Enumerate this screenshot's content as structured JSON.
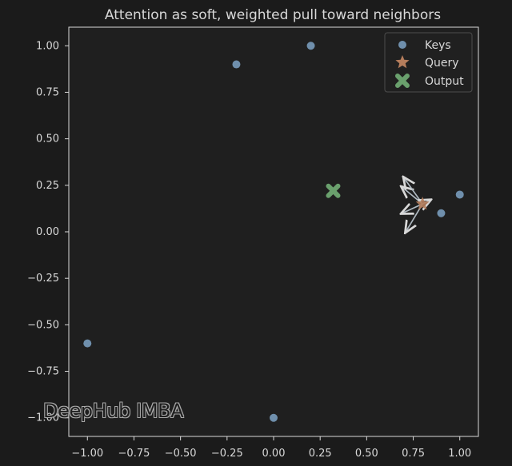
{
  "watermark": "DeepHub IMBA",
  "chart_data": {
    "type": "scatter",
    "title": "Attention as soft, weighted pull toward neighbors",
    "xlabel": "",
    "ylabel": "",
    "xlim": [
      -1.1,
      1.1
    ],
    "ylim": [
      -1.1,
      1.1
    ],
    "xticks": [
      -1.0,
      -0.75,
      -0.5,
      -0.25,
      0.0,
      0.25,
      0.5,
      0.75,
      1.0
    ],
    "xtick_labels": [
      "−1.00",
      "−0.75",
      "−0.50",
      "−0.25",
      "0.00",
      "0.25",
      "0.50",
      "0.75",
      "1.00"
    ],
    "yticks": [
      1.0,
      0.75,
      0.5,
      0.25,
      0.0,
      -0.25,
      -0.5,
      -0.75,
      -1.0
    ],
    "ytick_labels": [
      "1.00",
      "0.75",
      "0.50",
      "0.25",
      "0.00",
      "−0.25",
      "−0.50",
      "−0.75",
      "−1.00"
    ],
    "grid": false,
    "legend_location": "top-right",
    "series": [
      {
        "name": "Keys",
        "marker": "circle",
        "color": "#6f8fac",
        "points": [
          {
            "x": 0.2,
            "y": 1.0
          },
          {
            "x": -0.2,
            "y": 0.9
          },
          {
            "x": 1.0,
            "y": 0.2
          },
          {
            "x": 0.9,
            "y": 0.1
          },
          {
            "x": -1.0,
            "y": -0.6
          },
          {
            "x": 0.0,
            "y": -1.0
          }
        ]
      },
      {
        "name": "Query",
        "marker": "star",
        "color": "#b57d5c",
        "points": [
          {
            "x": 0.8,
            "y": 0.15
          }
        ]
      },
      {
        "name": "Output",
        "marker": "x",
        "color": "#6aa06d",
        "points": [
          {
            "x": 0.32,
            "y": 0.22
          }
        ]
      }
    ],
    "arrows": [
      {
        "from_x": 0.8,
        "from_y": 0.15,
        "to_x": 0.69,
        "to_y": 0.24,
        "color": "#aeb8c0"
      },
      {
        "from_x": 0.8,
        "from_y": 0.15,
        "to_x": 0.7,
        "to_y": 0.29,
        "color": "#aeb8c0"
      },
      {
        "from_x": 0.8,
        "from_y": 0.15,
        "to_x": 0.84,
        "to_y": 0.17,
        "color": "#aeb8c0"
      },
      {
        "from_x": 0.8,
        "from_y": 0.15,
        "to_x": 0.69,
        "to_y": 0.1,
        "color": "#aeb8c0"
      },
      {
        "from_x": 0.8,
        "from_y": 0.15,
        "to_x": 0.71,
        "to_y": 0.0,
        "color": "#aeb8c0"
      }
    ],
    "colors": {
      "background": "#1b1b1b",
      "plot_background": "#1f1f1f",
      "axis": "#d9d9d9",
      "text": "#d8d8d8",
      "legend_border": "#4d4d4d",
      "legend_background": "#202020"
    }
  }
}
